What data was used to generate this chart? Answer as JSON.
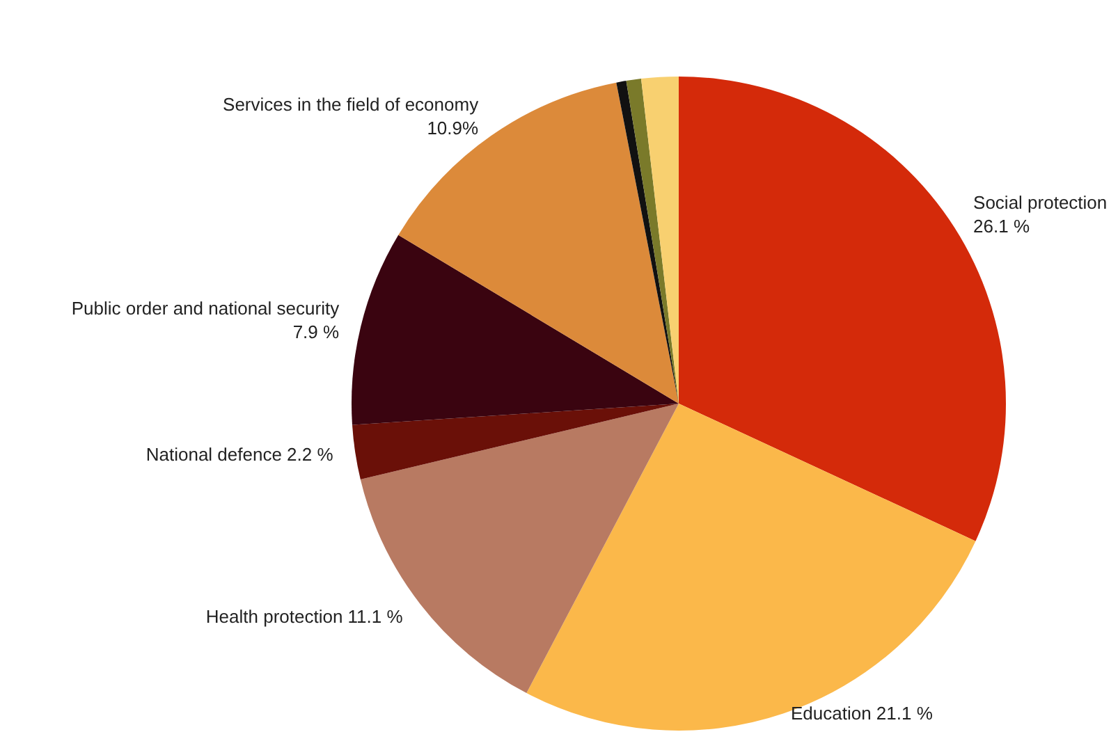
{
  "chart_data": {
    "type": "pie",
    "categories": [
      "Social protection",
      "Education",
      "Health protection",
      "National defence",
      "Public order and national security",
      "Services in the field of economy",
      null,
      null,
      null
    ],
    "values": [
      26.1,
      21.1,
      11.1,
      2.2,
      7.9,
      10.9,
      0.4,
      0.6,
      1.5
    ],
    "value_labels": [
      "26.1 %",
      "21.1 %",
      "11.1 %",
      "2.2 %",
      "7.9 %",
      "10.9%",
      null,
      null,
      null
    ],
    "colors": [
      "#d42a0a",
      "#fbb84a",
      "#b87a62",
      "#6a1008",
      "#3a0410",
      "#dc8a3a",
      "#111111",
      "#7a7a2a",
      "#f8d070"
    ],
    "legend": false
  }
}
